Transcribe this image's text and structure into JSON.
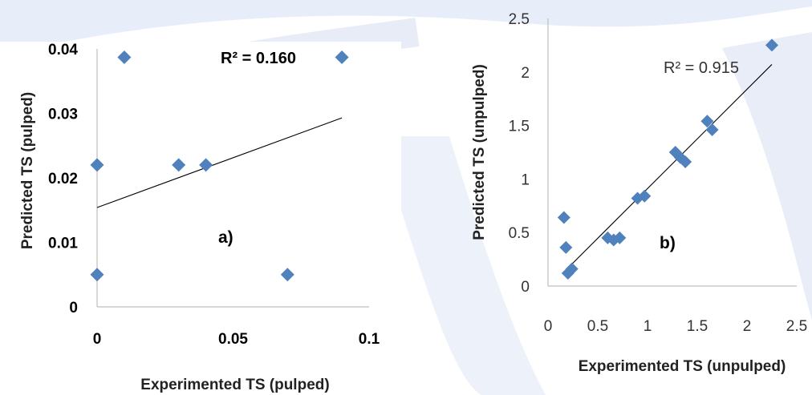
{
  "chart_data": [
    {
      "type": "scatter",
      "panel_label": "a)",
      "xlabel": "Experimented TS (pulped)",
      "ylabel": "Predicted TS (pulped)",
      "annotation": "R² = 0.160",
      "xlim": [
        0,
        0.1
      ],
      "ylim": [
        0,
        0.04
      ],
      "x_ticks": [
        "0",
        "0.05",
        "0.1"
      ],
      "x_tick_values": [
        0,
        0.05,
        0.1
      ],
      "y_ticks": [
        "0",
        "0.01",
        "0.02",
        "0.03",
        "0.04"
      ],
      "y_tick_values": [
        0,
        0.01,
        0.02,
        0.03,
        0.04
      ],
      "points": [
        {
          "x": 0.0,
          "y": 0.022
        },
        {
          "x": 0.0,
          "y": 0.005
        },
        {
          "x": 0.01,
          "y": 0.0387
        },
        {
          "x": 0.03,
          "y": 0.022
        },
        {
          "x": 0.04,
          "y": 0.022
        },
        {
          "x": 0.07,
          "y": 0.005
        },
        {
          "x": 0.09,
          "y": 0.0387
        }
      ],
      "trendline": {
        "x": [
          0,
          0.09
        ],
        "y": [
          0.0154,
          0.0293
        ]
      },
      "marker_color": "#4F81BD",
      "grid": false
    },
    {
      "type": "scatter",
      "panel_label": "b)",
      "xlabel": "Experimented TS (unpulped)",
      "ylabel": "Predicted TS (unpulped)",
      "annotation": "R² = 0.915",
      "xlim": [
        0,
        2.5
      ],
      "ylim": [
        0,
        2.5
      ],
      "x_ticks": [
        "0",
        "0.5",
        "1",
        "1.5",
        "2",
        "2.5"
      ],
      "x_tick_values": [
        0,
        0.5,
        1,
        1.5,
        2,
        2.5
      ],
      "y_ticks": [
        "0",
        "0.5",
        "1",
        "1.5",
        "2",
        "2.5"
      ],
      "y_tick_values": [
        0,
        0.5,
        1,
        1.5,
        2,
        2.5
      ],
      "points": [
        {
          "x": 0.16,
          "y": 0.64
        },
        {
          "x": 0.18,
          "y": 0.36
        },
        {
          "x": 0.2,
          "y": 0.12
        },
        {
          "x": 0.24,
          "y": 0.16
        },
        {
          "x": 0.6,
          "y": 0.45
        },
        {
          "x": 0.66,
          "y": 0.43
        },
        {
          "x": 0.72,
          "y": 0.45
        },
        {
          "x": 0.9,
          "y": 0.82
        },
        {
          "x": 0.97,
          "y": 0.84
        },
        {
          "x": 1.28,
          "y": 1.25
        },
        {
          "x": 1.33,
          "y": 1.2
        },
        {
          "x": 1.38,
          "y": 1.16
        },
        {
          "x": 1.6,
          "y": 1.54
        },
        {
          "x": 1.65,
          "y": 1.46
        },
        {
          "x": 2.25,
          "y": 2.25
        }
      ],
      "trendline": {
        "x": [
          0.18,
          2.25
        ],
        "y": [
          0.15,
          2.07
        ]
      },
      "marker_color": "#4F81BD",
      "grid": false
    }
  ]
}
